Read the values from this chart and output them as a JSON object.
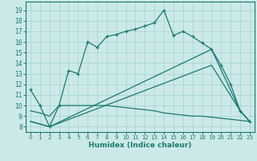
{
  "xlabel": "Humidex (Indice chaleur)",
  "xlim": [
    -0.5,
    23.5
  ],
  "ylim": [
    7.5,
    19.8
  ],
  "xticks": [
    0,
    1,
    2,
    3,
    4,
    5,
    6,
    7,
    8,
    9,
    10,
    11,
    12,
    13,
    14,
    15,
    16,
    17,
    18,
    19,
    20,
    21,
    22,
    23
  ],
  "yticks": [
    8,
    9,
    10,
    11,
    12,
    13,
    14,
    15,
    16,
    17,
    18,
    19
  ],
  "bg_color": "#cce9e9",
  "line_color": "#1a7a6e",
  "grid_color": "#aad4d4",
  "line1_x": [
    0,
    1,
    2,
    3,
    4,
    5,
    6,
    7,
    8,
    9,
    10,
    11,
    12,
    13,
    14,
    15,
    16,
    17,
    18,
    19,
    20,
    21,
    22,
    23
  ],
  "line1_y": [
    11.5,
    10.0,
    8.0,
    10.0,
    13.3,
    13.0,
    16.0,
    15.5,
    16.5,
    16.7,
    17.0,
    17.2,
    17.5,
    17.8,
    19.0,
    16.6,
    17.0,
    16.5,
    15.9,
    15.3,
    13.8,
    12.0,
    9.5,
    8.5
  ],
  "line2_x": [
    0,
    1,
    2,
    3,
    4,
    5,
    6,
    7,
    8,
    9,
    10,
    11,
    12,
    13,
    14,
    15,
    16,
    17,
    18,
    19,
    20,
    21,
    22,
    23
  ],
  "line2_y": [
    9.5,
    9.3,
    9.0,
    10.0,
    10.0,
    10.0,
    10.0,
    10.0,
    10.0,
    9.9,
    9.8,
    9.7,
    9.6,
    9.5,
    9.3,
    9.2,
    9.1,
    9.0,
    9.0,
    8.9,
    8.8,
    8.7,
    8.6,
    8.5
  ],
  "line3_x": [
    0,
    2,
    19,
    22,
    23
  ],
  "line3_y": [
    8.5,
    8.0,
    15.3,
    9.5,
    8.5
  ],
  "line4_x": [
    0,
    2,
    19,
    22,
    23
  ],
  "line4_y": [
    8.5,
    8.0,
    13.8,
    9.5,
    8.5
  ]
}
